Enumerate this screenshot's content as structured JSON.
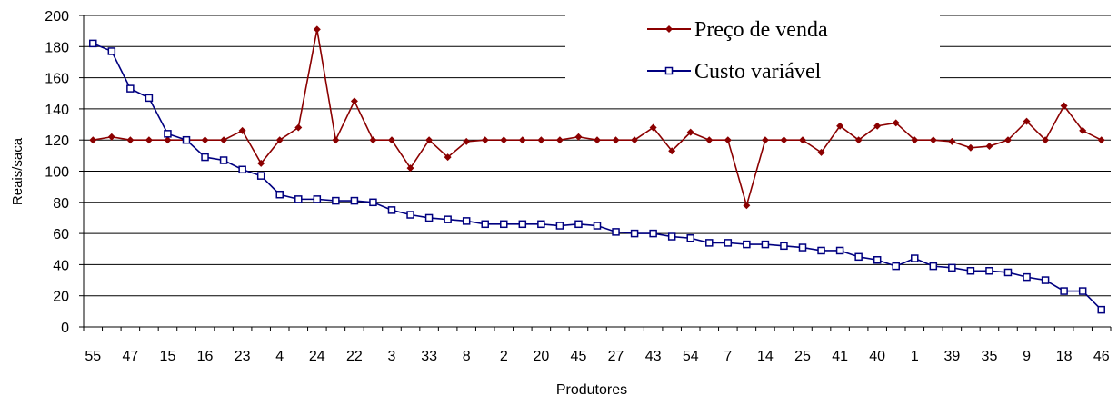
{
  "chart_data": {
    "type": "line",
    "xlabel": "Produtores",
    "ylabel": "Reais/saca",
    "ylim": [
      0,
      200
    ],
    "yticks": [
      0,
      20,
      40,
      60,
      80,
      100,
      120,
      140,
      160,
      180,
      200
    ],
    "grid": true,
    "legend_position": "top-right",
    "categories": [
      "55",
      "",
      "47",
      "",
      "15",
      "",
      "16",
      "",
      "23",
      "",
      "4",
      "",
      "24",
      "",
      "22",
      "",
      "3",
      "",
      "33",
      "",
      "8",
      "",
      "2",
      "",
      "20",
      "",
      "45",
      "",
      "27",
      "",
      "43",
      "",
      "54",
      "",
      "7",
      "",
      "14",
      "",
      "25",
      "",
      "41",
      "",
      "40",
      "",
      "1",
      "",
      "39",
      "",
      "35",
      "",
      "9",
      "",
      "18",
      "",
      "46"
    ],
    "series": [
      {
        "name": "Preço de venda",
        "color": "#8B0000",
        "marker": "diamond",
        "values": [
          120,
          122,
          120,
          120,
          120,
          120,
          120,
          120,
          126,
          105,
          120,
          128,
          191,
          120,
          145,
          120,
          120,
          102,
          120,
          109,
          119,
          120,
          120,
          120,
          120,
          120,
          122,
          120,
          120,
          120,
          128,
          113,
          125,
          120,
          120,
          78,
          120,
          120,
          120,
          112,
          129,
          120,
          129,
          131,
          120,
          120,
          119,
          115,
          116,
          120,
          132,
          120,
          142,
          126,
          120
        ]
      },
      {
        "name": "Custo variável",
        "color": "#000080",
        "marker": "square",
        "values": [
          182,
          177,
          153,
          147,
          124,
          120,
          109,
          107,
          101,
          97,
          85,
          82,
          82,
          81,
          81,
          80,
          75,
          72,
          70,
          69,
          68,
          66,
          66,
          66,
          66,
          65,
          66,
          65,
          61,
          60,
          60,
          58,
          57,
          54,
          54,
          53,
          53,
          52,
          51,
          49,
          49,
          45,
          43,
          39,
          44,
          39,
          38,
          36,
          36,
          35,
          32,
          30,
          23,
          23,
          11
        ]
      }
    ]
  }
}
